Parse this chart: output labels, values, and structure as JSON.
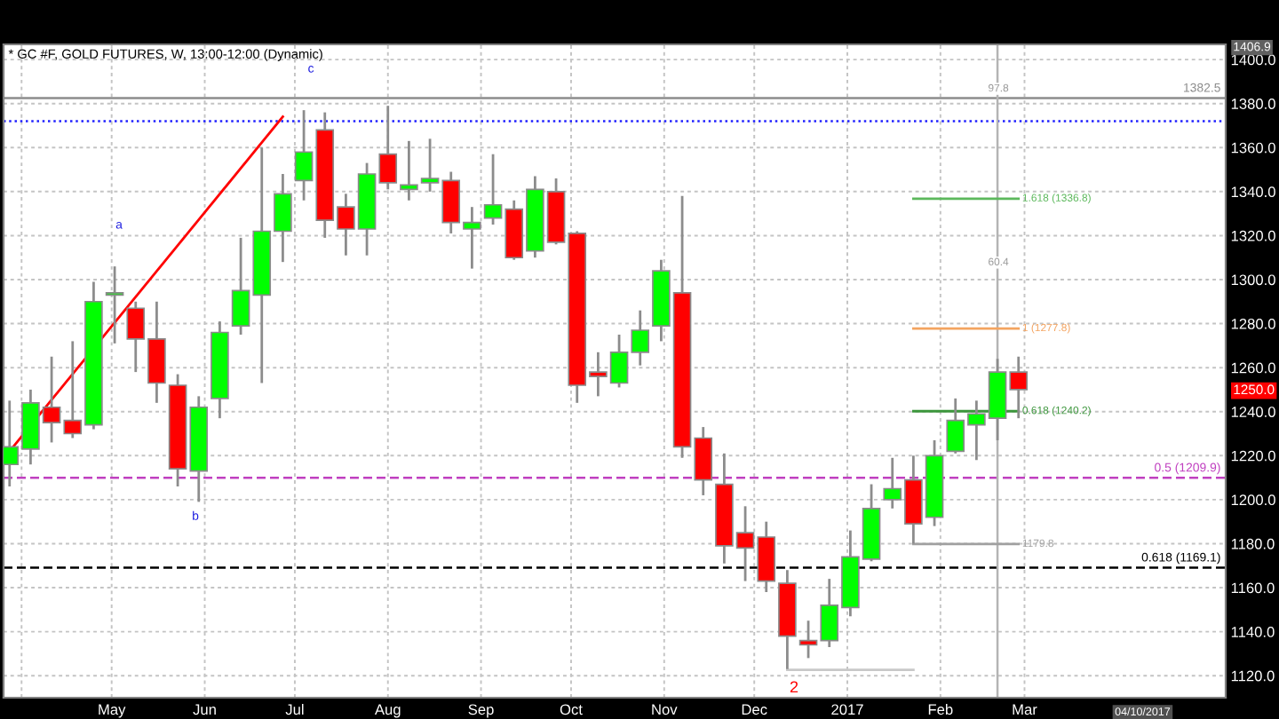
{
  "chart_data": {
    "type": "candlestick",
    "title": "* GC #F, GOLD FUTURES, W, 13:00-12:00 (Dynamic)",
    "x": [
      "2016-03-28",
      "2016-04-04",
      "2016-04-11",
      "2016-04-18",
      "2016-04-25",
      "2016-05-02",
      "2016-05-09",
      "2016-05-16",
      "2016-05-23",
      "2016-05-30",
      "2016-06-06",
      "2016-06-13",
      "2016-06-20",
      "2016-06-27",
      "2016-07-04",
      "2016-07-11",
      "2016-07-18",
      "2016-07-25",
      "2016-08-01",
      "2016-08-08",
      "2016-08-15",
      "2016-08-22",
      "2016-08-29",
      "2016-09-05",
      "2016-09-12",
      "2016-09-19",
      "2016-09-26",
      "2016-10-03",
      "2016-10-10",
      "2016-10-17",
      "2016-10-24",
      "2016-10-31",
      "2016-11-07",
      "2016-11-14",
      "2016-11-21",
      "2016-11-28",
      "2016-12-05",
      "2016-12-12",
      "2016-12-19",
      "2016-12-26",
      "2017-01-02",
      "2017-01-09",
      "2017-01-16",
      "2017-01-23",
      "2017-01-30",
      "2017-02-06",
      "2017-02-13",
      "2017-02-20",
      "2017-02-27"
    ],
    "ohlc": [
      [
        1216,
        1245,
        1206,
        1224
      ],
      [
        1223,
        1250,
        1216,
        1244
      ],
      [
        1242,
        1265,
        1226,
        1235
      ],
      [
        1236,
        1272,
        1228,
        1230
      ],
      [
        1234,
        1299,
        1232,
        1290
      ],
      [
        1293,
        1306,
        1271,
        1294
      ],
      [
        1287,
        1290,
        1258,
        1273
      ],
      [
        1273,
        1290,
        1244,
        1253
      ],
      [
        1252,
        1257,
        1206,
        1214
      ],
      [
        1213,
        1247,
        1199,
        1242
      ],
      [
        1246,
        1281,
        1237,
        1276
      ],
      [
        1279,
        1319,
        1275,
        1295
      ],
      [
        1293,
        1360,
        1253,
        1322
      ],
      [
        1322,
        1348,
        1308,
        1339
      ],
      [
        1345,
        1377,
        1336,
        1358
      ],
      [
        1368,
        1376,
        1319,
        1327
      ],
      [
        1333,
        1339,
        1311,
        1323
      ],
      [
        1323,
        1353,
        1311,
        1348
      ],
      [
        1357,
        1379,
        1341,
        1344
      ],
      [
        1341,
        1363,
        1336,
        1343
      ],
      [
        1344,
        1364,
        1340,
        1346
      ],
      [
        1345,
        1349,
        1321,
        1326
      ],
      [
        1323,
        1333,
        1305,
        1326
      ],
      [
        1328,
        1357,
        1325,
        1334
      ],
      [
        1332,
        1336,
        1309,
        1310
      ],
      [
        1313,
        1347,
        1310,
        1341
      ],
      [
        1340,
        1346,
        1316,
        1317
      ],
      [
        1321,
        1322,
        1244,
        1252
      ],
      [
        1258,
        1267,
        1247,
        1256
      ],
      [
        1253,
        1275,
        1251,
        1267
      ],
      [
        1267,
        1286,
        1261,
        1277
      ],
      [
        1279,
        1309,
        1272,
        1304
      ],
      [
        1294,
        1338,
        1219,
        1224
      ],
      [
        1228,
        1233,
        1202,
        1209
      ],
      [
        1207,
        1221,
        1171,
        1179
      ],
      [
        1185,
        1197,
        1163,
        1178
      ],
      [
        1183,
        1190,
        1158,
        1163
      ],
      [
        1162,
        1168,
        1123,
        1138
      ],
      [
        1136,
        1145,
        1128,
        1134
      ],
      [
        1136,
        1164,
        1133,
        1152
      ],
      [
        1151,
        1186,
        1147,
        1174
      ],
      [
        1173,
        1207,
        1172,
        1196
      ],
      [
        1200,
        1219,
        1196,
        1205
      ],
      [
        1209,
        1220,
        1180,
        1189
      ],
      [
        1192,
        1227,
        1188,
        1220
      ],
      [
        1222,
        1246,
        1221,
        1236
      ],
      [
        1234,
        1245,
        1218,
        1239
      ],
      [
        1237,
        1264,
        1227,
        1258
      ],
      [
        1258,
        1265,
        1237,
        1250
      ]
    ],
    "colors": [
      "#00ff00",
      "#00ff00",
      "#ff0000",
      "#ff0000",
      "#00ff00",
      "#00ff00",
      "#ff0000",
      "#ff0000",
      "#ff0000",
      "#00ff00",
      "#00ff00",
      "#00ff00",
      "#00ff00",
      "#00ff00",
      "#00ff00",
      "#ff0000",
      "#ff0000",
      "#00ff00",
      "#ff0000",
      "#00ff00",
      "#00ff00",
      "#ff0000",
      "#00ff00",
      "#00ff00",
      "#ff0000",
      "#00ff00",
      "#ff0000",
      "#ff0000",
      "#ff0000",
      "#00ff00",
      "#00ff00",
      "#00ff00",
      "#ff0000",
      "#ff0000",
      "#ff0000",
      "#ff0000",
      "#ff0000",
      "#ff0000",
      "#ff0000",
      "#00ff00",
      "#00ff00",
      "#00ff00",
      "#00ff00",
      "#ff0000",
      "#00ff00",
      "#00ff00",
      "#00ff00",
      "#00ff00",
      "#ff0000"
    ],
    "series": [
      {
        "type": "line",
        "color": "#ff0000",
        "x": [
          "2016-03-28",
          "2016-06-27"
        ],
        "values": [
          1222,
          1374
        ]
      },
      {
        "type": "line",
        "name": "1.618 (1336.8)",
        "color": "#5cb85c",
        "x": [
          "2017-01-23",
          "2017-02-27"
        ],
        "values": [
          1336.8,
          1336.8
        ]
      },
      {
        "type": "line",
        "name": "1 (1277.8)",
        "color": "#f4a460",
        "x": [
          "2017-01-23",
          "2017-02-27"
        ],
        "values": [
          1277.8,
          1277.8
        ]
      },
      {
        "type": "line",
        "name": "0.618 (1240.2)",
        "color": "#3c963c",
        "x": [
          "2017-01-23",
          "2017-02-27"
        ],
        "values": [
          1240.2,
          1240.2
        ]
      },
      {
        "type": "line",
        "name": "1179.8",
        "color": "#a0a0a0",
        "x": [
          "2017-01-23",
          "2017-02-27"
        ],
        "values": [
          1179.8,
          1179.8
        ]
      },
      {
        "type": "line",
        "color": "#c8c8c8",
        "x": [
          "2016-12-12",
          "2017-01-23"
        ],
        "values": [
          1122.7,
          1122.7
        ]
      }
    ],
    "ref_lines": [
      {
        "axis": "y",
        "value": 1382.5,
        "label": "1382.5",
        "color": "#8c8c8c",
        "line_style": "solid"
      },
      {
        "axis": "y",
        "value": 1372,
        "color": "#2020ff",
        "line_style": "dotted"
      },
      {
        "axis": "y",
        "value": 1209.9,
        "label": "0.5 (1209.9)",
        "color": "#c040c0",
        "line_style": "dashed"
      },
      {
        "axis": "y",
        "value": 1169.1,
        "label": "0.618 (1169.1)",
        "color": "#000000",
        "line_style": "dashed"
      },
      {
        "axis": "x",
        "value": "2017-02-20",
        "color": "#b4b4b4",
        "line_style": "solid"
      }
    ],
    "annotations": [
      "a",
      "b",
      "c",
      "2",
      "97.8",
      "60.4",
      "1406.9",
      "1250.0",
      "04/10/2017"
    ],
    "xlim": [
      "2016-03-26",
      "2017-05-07"
    ],
    "xticks": [
      {
        "value": "2016-04-01",
        "label": null
      },
      {
        "value": "2016-05-01",
        "label": "May"
      },
      {
        "value": "2016-06-01",
        "label": "Jun"
      },
      {
        "value": "2016-07-01",
        "label": "Jul"
      },
      {
        "value": "2016-08-01",
        "label": "Aug"
      },
      {
        "value": "2016-09-01",
        "label": "Sep"
      },
      {
        "value": "2016-10-01",
        "label": "Oct"
      },
      {
        "value": "2016-11-01",
        "label": "Nov"
      },
      {
        "value": "2016-12-01",
        "label": "Dec"
      },
      {
        "value": "2017-01-01",
        "label": "2017"
      },
      {
        "value": "2017-02-01",
        "label": "Feb"
      },
      {
        "value": "2017-03-01",
        "label": "Mar"
      }
    ],
    "ylim": [
      1110,
      1406.9
    ],
    "yticks": [
      {
        "value": 1120,
        "label": "1120.0"
      },
      {
        "value": 1140,
        "label": "1140.0"
      },
      {
        "value": 1160,
        "label": "1160.0"
      },
      {
        "value": 1180,
        "label": "1180.0"
      },
      {
        "value": 1200,
        "label": "1200.0"
      },
      {
        "value": 1220,
        "label": "1220.0"
      },
      {
        "value": 1240,
        "label": "1240.0"
      },
      {
        "value": 1260,
        "label": "1260.0"
      },
      {
        "value": 1280,
        "label": "1280.0"
      },
      {
        "value": 1300,
        "label": "1300.0"
      },
      {
        "value": 1320,
        "label": "1320.0"
      },
      {
        "value": 1340,
        "label": "1340.0"
      },
      {
        "value": 1360,
        "label": "1360.0"
      },
      {
        "value": 1380,
        "label": "1380.0"
      },
      {
        "value": 1400,
        "label": "1400.0"
      }
    ],
    "grid": true
  }
}
